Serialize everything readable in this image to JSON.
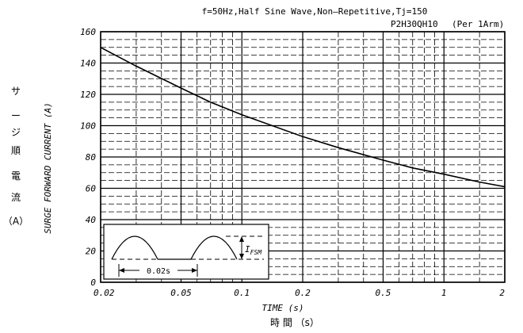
{
  "chart_data": {
    "type": "line",
    "title": "f=50Hz,Half Sine Wave,Non—Repetitive,Tj=150",
    "part_number": "P2H30QH10",
    "condition": "(Per 1Arm)",
    "xlabel": "TIME (s)",
    "xlabel_jp": "時  間  （s）",
    "ylabel": "SURGE FORWARD CURRENT (A)",
    "ylabel_jp": [
      "サ",
      "ー",
      "ジ",
      "順",
      "電",
      "流",
      "（A）"
    ],
    "x_scale": "log",
    "xlim": [
      0.02,
      2
    ],
    "ylim": [
      0,
      160
    ],
    "x_ticks": [
      {
        "value": 0.02,
        "label": "0.02"
      },
      {
        "value": 0.05,
        "label": "0.05"
      },
      {
        "value": 0.1,
        "label": "0.1"
      },
      {
        "value": 0.2,
        "label": "0.2"
      },
      {
        "value": 0.5,
        "label": "0.5"
      },
      {
        "value": 1,
        "label": "1"
      },
      {
        "value": 2,
        "label": "2"
      }
    ],
    "y_ticks": [
      0,
      20,
      40,
      60,
      80,
      100,
      120,
      140,
      160
    ],
    "grid": true,
    "series": [
      {
        "x": [
          0.02,
          0.03,
          0.05,
          0.07,
          0.1,
          0.2,
          0.3,
          0.5,
          0.7,
          1.0,
          1.5,
          2.0
        ],
        "y": [
          150,
          138,
          124,
          115,
          107,
          93,
          86,
          78,
          73,
          69,
          64,
          61
        ]
      }
    ],
    "inset": {
      "period_label": "0.02s",
      "peak_label": "IFSM",
      "peak_label_main": "I",
      "peak_label_sub": "FSM"
    }
  }
}
